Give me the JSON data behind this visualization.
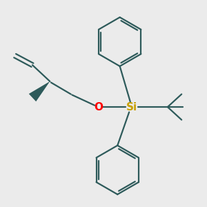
{
  "bg_color": "#ebebeb",
  "bond_color": "#2d5a5a",
  "o_color": "#ff0000",
  "si_color": "#c8a000",
  "line_width": 1.6,
  "font_size_atom": 11
}
